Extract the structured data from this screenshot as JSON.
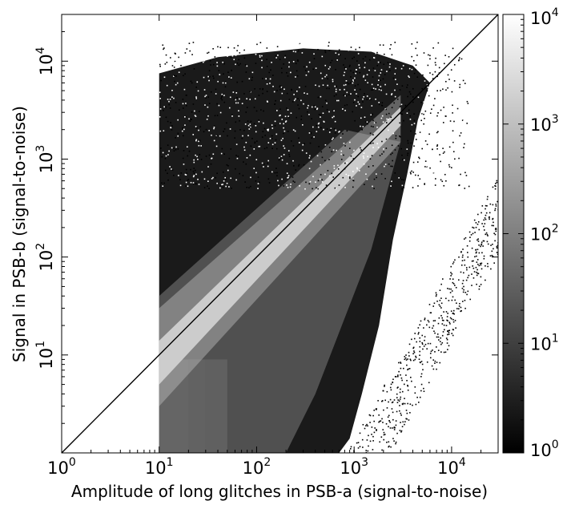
{
  "chart_data": {
    "type": "heatmap",
    "title": "",
    "xlabel": "Amplitude of long glitches in PSB-a (signal-to-noise)",
    "ylabel": "Signal in PSB-b (signal-to-noise)",
    "x_scale": "log",
    "y_scale": "log",
    "xlim": [
      1,
      30000
    ],
    "ylim": [
      1,
      30000
    ],
    "x_ticks": [
      {
        "value": 1,
        "base": "10",
        "exp": "0"
      },
      {
        "value": 10,
        "base": "10",
        "exp": "1"
      },
      {
        "value": 100,
        "base": "10",
        "exp": "2"
      },
      {
        "value": 1000,
        "base": "10",
        "exp": "3"
      },
      {
        "value": 10000,
        "base": "10",
        "exp": "4"
      }
    ],
    "y_ticks": [
      {
        "value": 10,
        "base": "10",
        "exp": "1"
      },
      {
        "value": 100,
        "base": "10",
        "exp": "2"
      },
      {
        "value": 1000,
        "base": "10",
        "exp": "3"
      },
      {
        "value": 10000,
        "base": "10",
        "exp": "4"
      }
    ],
    "colorbar": {
      "scale": "log",
      "range": [
        1,
        10000
      ],
      "colormap": "gray",
      "ticks": [
        {
          "value": 1,
          "base": "10",
          "exp": "0"
        },
        {
          "value": 10,
          "base": "10",
          "exp": "1"
        },
        {
          "value": 100,
          "base": "10",
          "exp": "2"
        },
        {
          "value": 1000,
          "base": "10",
          "exp": "3"
        },
        {
          "value": 10000,
          "base": "10",
          "exp": "4"
        }
      ]
    },
    "reference_line": {
      "type": "identity",
      "from": [
        1,
        1
      ],
      "to": [
        30000,
        30000
      ]
    },
    "data_region": {
      "x_min": 10,
      "x_max": 20000,
      "y_min": 1,
      "y_max": 15000
    }
  }
}
